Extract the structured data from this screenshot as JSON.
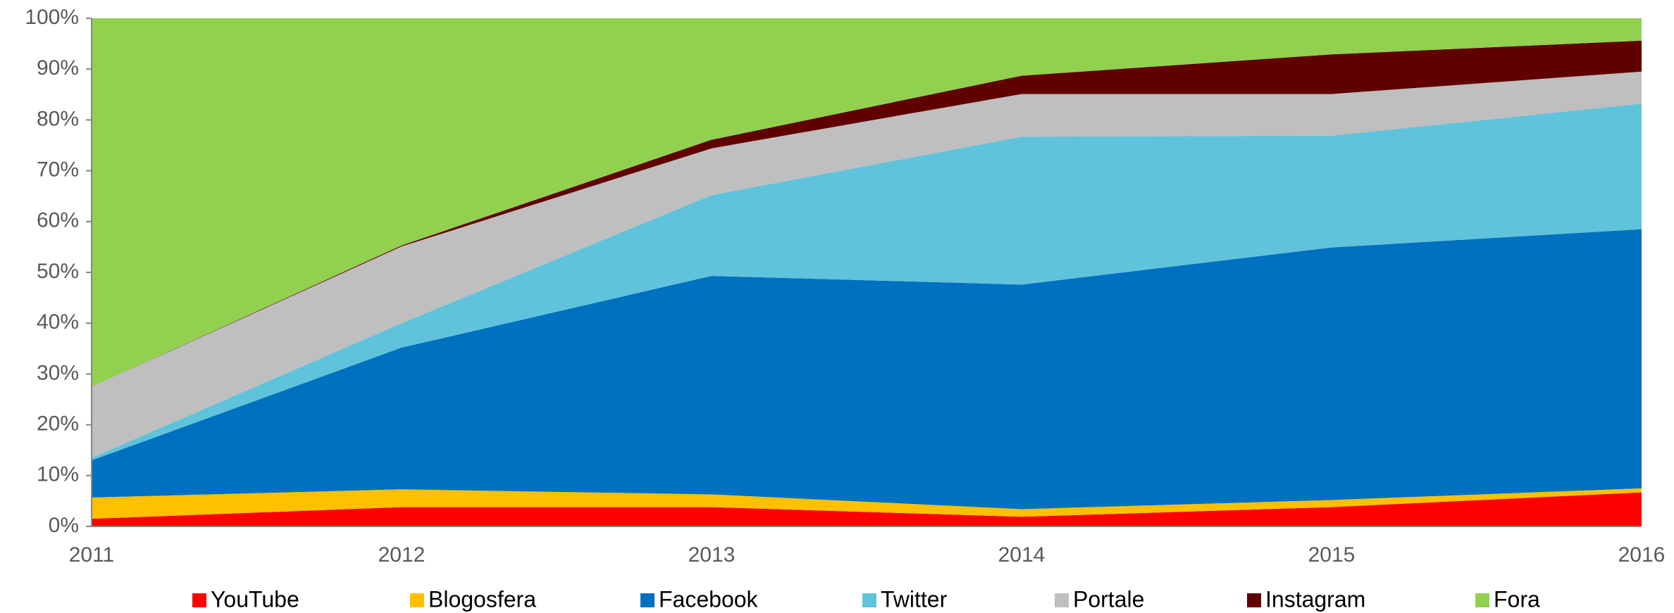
{
  "chart_data": {
    "type": "stacked_area",
    "categories": [
      "2011",
      "2012",
      "2013",
      "2014",
      "2015",
      "2016"
    ],
    "series": [
      {
        "name": "YouTube",
        "color": "#ff0000",
        "values": [
          1.5,
          3.8,
          3.8,
          1.9,
          3.8,
          6.7
        ]
      },
      {
        "name": "Blogosfera",
        "color": "#ffc000",
        "values": [
          4.2,
          3.5,
          2.5,
          1.5,
          1.4,
          0.8
        ]
      },
      {
        "name": "Facebook",
        "color": "#0070c0",
        "values": [
          7.3,
          27.9,
          43.0,
          44.2,
          49.7,
          51.0
        ]
      },
      {
        "name": "Twitter",
        "color": "#5fc3dc",
        "values": [
          0.5,
          4.8,
          15.9,
          29.1,
          22.0,
          24.7
        ]
      },
      {
        "name": "Portale",
        "color": "#bfbfbf",
        "values": [
          14.0,
          15.1,
          9.2,
          8.4,
          8.2,
          6.3
        ]
      },
      {
        "name": "Instagram",
        "color": "#600000",
        "values": [
          0,
          0.2,
          1.7,
          3.6,
          7.8,
          6.1
        ]
      },
      {
        "name": "Fora",
        "color": "#92d050",
        "values": [
          72.5,
          44.7,
          23.9,
          11.3,
          7.1,
          4.4
        ]
      }
    ],
    "ylim": [
      0,
      100
    ],
    "yticks": [
      {
        "value": 0,
        "label": "0%"
      },
      {
        "value": 10,
        "label": "10%"
      },
      {
        "value": 20,
        "label": "20%"
      },
      {
        "value": 30,
        "label": "30%"
      },
      {
        "value": 40,
        "label": "40%"
      },
      {
        "value": 50,
        "label": "50%"
      },
      {
        "value": 60,
        "label": "60%"
      },
      {
        "value": 70,
        "label": "70%"
      },
      {
        "value": 80,
        "label": "80%"
      },
      {
        "value": 90,
        "label": "90%"
      },
      {
        "value": 100,
        "label": "100%"
      }
    ],
    "legend": "bottom"
  }
}
